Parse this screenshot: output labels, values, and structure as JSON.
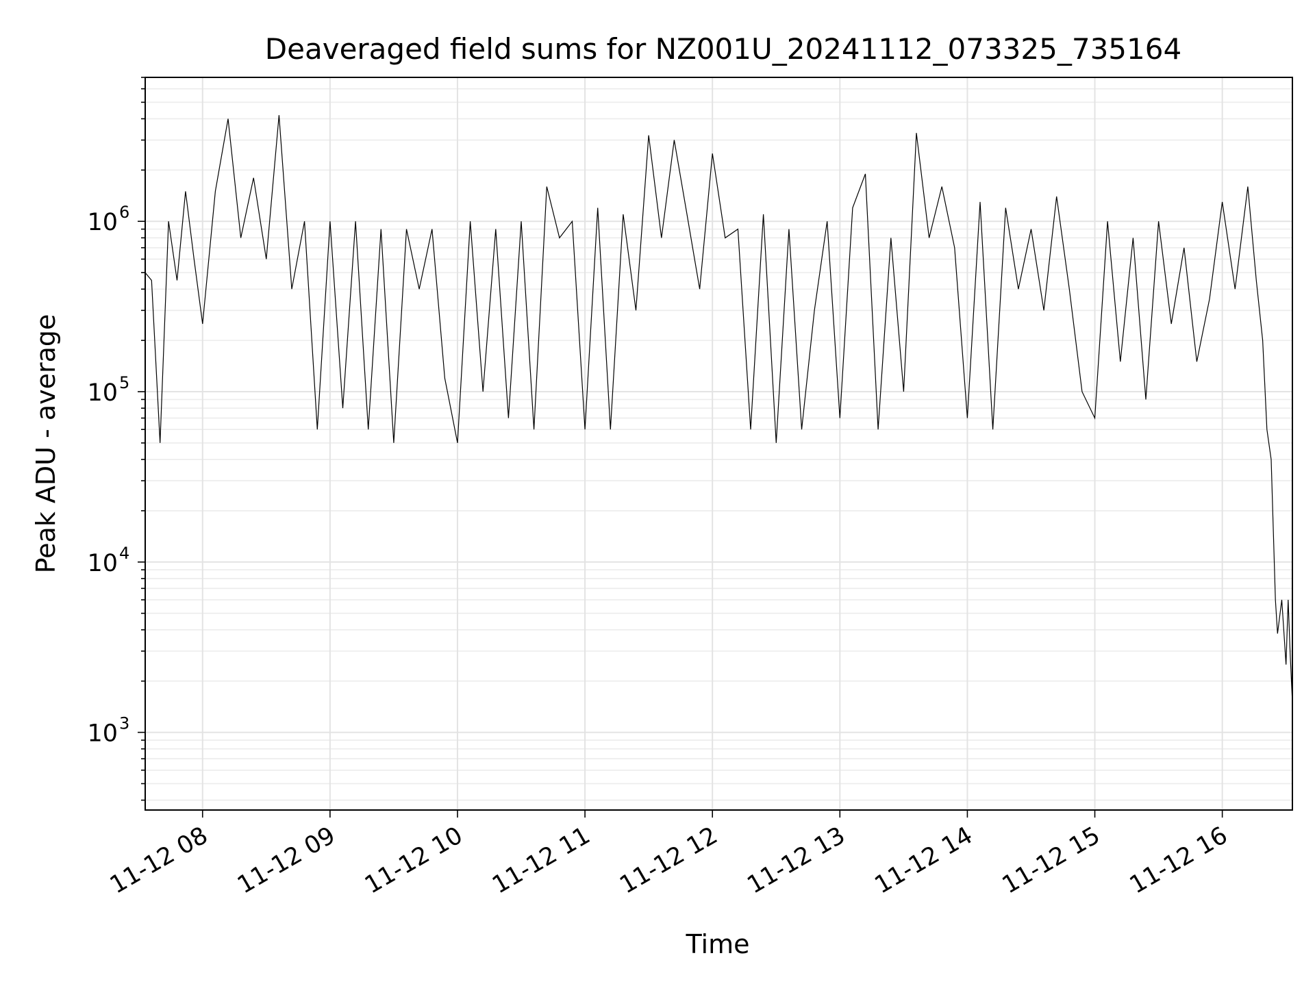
{
  "chart_data": {
    "type": "line",
    "title": "Deaveraged field sums for NZ001U_20241112_073325_735164",
    "xlabel": "Time",
    "ylabel": "Peak ADU - average",
    "x_axis": {
      "kind": "datetime",
      "range": [
        "2024-11-12 07:33",
        "2024-11-12 16:33"
      ],
      "tick_values": [
        "2024-11-12 08:00",
        "2024-11-12 09:00",
        "2024-11-12 10:00",
        "2024-11-12 11:00",
        "2024-11-12 12:00",
        "2024-11-12 13:00",
        "2024-11-12 14:00",
        "2024-11-12 15:00",
        "2024-11-12 16:00"
      ],
      "tick_labels": [
        "11-12 08",
        "11-12 09",
        "11-12 10",
        "11-12 11",
        "11-12 12",
        "11-12 13",
        "11-12 14",
        "11-12 15",
        "11-12 16"
      ],
      "tick_label_rotation_deg": 30
    },
    "y_axis": {
      "scale": "log",
      "range": [
        350,
        7000000
      ],
      "major_ticks": [
        1000,
        10000,
        100000,
        1000000
      ],
      "tick_labels": [
        {
          "base": "10",
          "exp": "3"
        },
        {
          "base": "10",
          "exp": "4"
        },
        {
          "base": "10",
          "exp": "5"
        },
        {
          "base": "10",
          "exp": "6"
        }
      ]
    },
    "grid": {
      "major": true,
      "minor_y": true
    },
    "legend": "none",
    "series": [
      {
        "color": "#000000",
        "x": [
          "2024-11-12 07:33",
          "2024-11-12 07:36",
          "2024-11-12 07:40",
          "2024-11-12 07:44",
          "2024-11-12 07:48",
          "2024-11-12 07:52",
          "2024-11-12 07:56",
          "2024-11-12 08:00",
          "2024-11-12 08:06",
          "2024-11-12 08:12",
          "2024-11-12 08:18",
          "2024-11-12 08:24",
          "2024-11-12 08:30",
          "2024-11-12 08:36",
          "2024-11-12 08:42",
          "2024-11-12 08:48",
          "2024-11-12 08:54",
          "2024-11-12 09:00",
          "2024-11-12 09:06",
          "2024-11-12 09:12",
          "2024-11-12 09:18",
          "2024-11-12 09:24",
          "2024-11-12 09:30",
          "2024-11-12 09:36",
          "2024-11-12 09:42",
          "2024-11-12 09:48",
          "2024-11-12 09:54",
          "2024-11-12 10:00",
          "2024-11-12 10:06",
          "2024-11-12 10:12",
          "2024-11-12 10:18",
          "2024-11-12 10:24",
          "2024-11-12 10:30",
          "2024-11-12 10:36",
          "2024-11-12 10:42",
          "2024-11-12 10:48",
          "2024-11-12 10:54",
          "2024-11-12 11:00",
          "2024-11-12 11:06",
          "2024-11-12 11:12",
          "2024-11-12 11:18",
          "2024-11-12 11:24",
          "2024-11-12 11:30",
          "2024-11-12 11:36",
          "2024-11-12 11:42",
          "2024-11-12 11:48",
          "2024-11-12 11:54",
          "2024-11-12 12:00",
          "2024-11-12 12:06",
          "2024-11-12 12:12",
          "2024-11-12 12:18",
          "2024-11-12 12:24",
          "2024-11-12 12:30",
          "2024-11-12 12:36",
          "2024-11-12 12:42",
          "2024-11-12 12:48",
          "2024-11-12 12:54",
          "2024-11-12 13:00",
          "2024-11-12 13:06",
          "2024-11-12 13:12",
          "2024-11-12 13:18",
          "2024-11-12 13:24",
          "2024-11-12 13:30",
          "2024-11-12 13:36",
          "2024-11-12 13:42",
          "2024-11-12 13:48",
          "2024-11-12 13:54",
          "2024-11-12 14:00",
          "2024-11-12 14:06",
          "2024-11-12 14:12",
          "2024-11-12 14:18",
          "2024-11-12 14:24",
          "2024-11-12 14:30",
          "2024-11-12 14:36",
          "2024-11-12 14:42",
          "2024-11-12 14:48",
          "2024-11-12 14:54",
          "2024-11-12 15:00",
          "2024-11-12 15:06",
          "2024-11-12 15:12",
          "2024-11-12 15:18",
          "2024-11-12 15:24",
          "2024-11-12 15:30",
          "2024-11-12 15:36",
          "2024-11-12 15:42",
          "2024-11-12 15:48",
          "2024-11-12 15:54",
          "2024-11-12 16:00",
          "2024-11-12 16:06",
          "2024-11-12 16:12",
          "2024-11-12 16:16",
          "2024-11-12 16:19",
          "2024-11-12 16:21",
          "2024-11-12 16:23",
          "2024-11-12 16:25",
          "2024-11-12 16:26",
          "2024-11-12 16:28",
          "2024-11-12 16:30",
          "2024-11-12 16:31",
          "2024-11-12 16:32",
          "2024-11-12 16:33"
        ],
        "values": [
          500000,
          450000,
          50000,
          1000000,
          450000,
          1500000,
          600000,
          250000,
          1500000,
          4000000,
          800000,
          1800000,
          600000,
          4200000,
          400000,
          1000000,
          60000,
          1000000,
          80000,
          1000000,
          60000,
          900000,
          50000,
          900000,
          400000,
          900000,
          120000,
          50000,
          1000000,
          100000,
          900000,
          70000,
          1000000,
          60000,
          1600000,
          800000,
          1000000,
          60000,
          1200000,
          60000,
          1100000,
          300000,
          3200000,
          800000,
          3000000,
          1100000,
          400000,
          2500000,
          800000,
          900000,
          60000,
          1100000,
          50000,
          900000,
          60000,
          300000,
          1000000,
          70000,
          1200000,
          1900000,
          60000,
          800000,
          100000,
          3300000,
          800000,
          1600000,
          700000,
          70000,
          1300000,
          60000,
          1200000,
          400000,
          900000,
          300000,
          1400000,
          400000,
          100000,
          70000,
          1000000,
          150000,
          800000,
          90000,
          1000000,
          250000,
          700000,
          150000,
          350000,
          1300000,
          400000,
          1600000,
          450000,
          200000,
          60000,
          40000,
          6000,
          3800,
          6000,
          2500,
          6000,
          2800,
          1500
        ]
      }
    ]
  }
}
